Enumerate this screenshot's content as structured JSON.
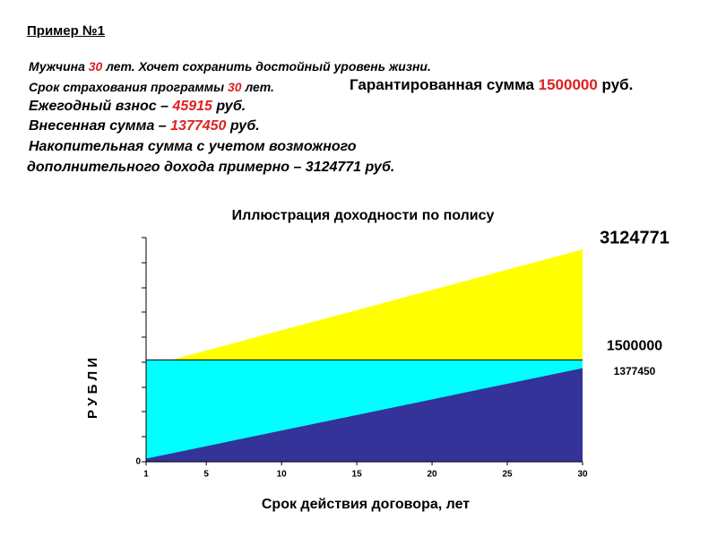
{
  "header": {
    "title": "Пример №1"
  },
  "lines": [
    [
      "Мужчина ",
      "30",
      " лет. Хочет сохранить достойный уровень жизни."
    ],
    [
      "Срок страхования программы ",
      "30",
      " лет."
    ],
    [
      "Гарантированная сумма ",
      "1500000",
      " руб."
    ],
    [
      "Ежегодный взнос – ",
      "45915",
      " руб."
    ],
    [
      "Внесенная сумма – ",
      "1377450",
      " руб."
    ],
    [
      "Накопительная сумма с учетом возможного"
    ],
    [
      "дополнительного дохода примерно – 3124771 руб."
    ]
  ],
  "chart_data": {
    "type": "area",
    "title": "Иллюстрация доходности по полису",
    "x_label": "Срок действия договора, лет",
    "y_label": "Р У Б Л И",
    "x": [
      1,
      30
    ],
    "series": [
      {
        "color": "#ffff00",
        "values": [
          1400000,
          3124771
        ]
      },
      {
        "color": "#00ffff",
        "values": [
          1500000,
          1500000
        ]
      },
      {
        "color": "#333399",
        "values": [
          45915,
          1377450
        ]
      }
    ],
    "xlim": [
      1,
      30
    ],
    "xticks": [
      1,
      5,
      10,
      15,
      20,
      25,
      30
    ],
    "ylim": [
      0,
      3300000
    ],
    "yticks": [
      0
    ]
  }
}
